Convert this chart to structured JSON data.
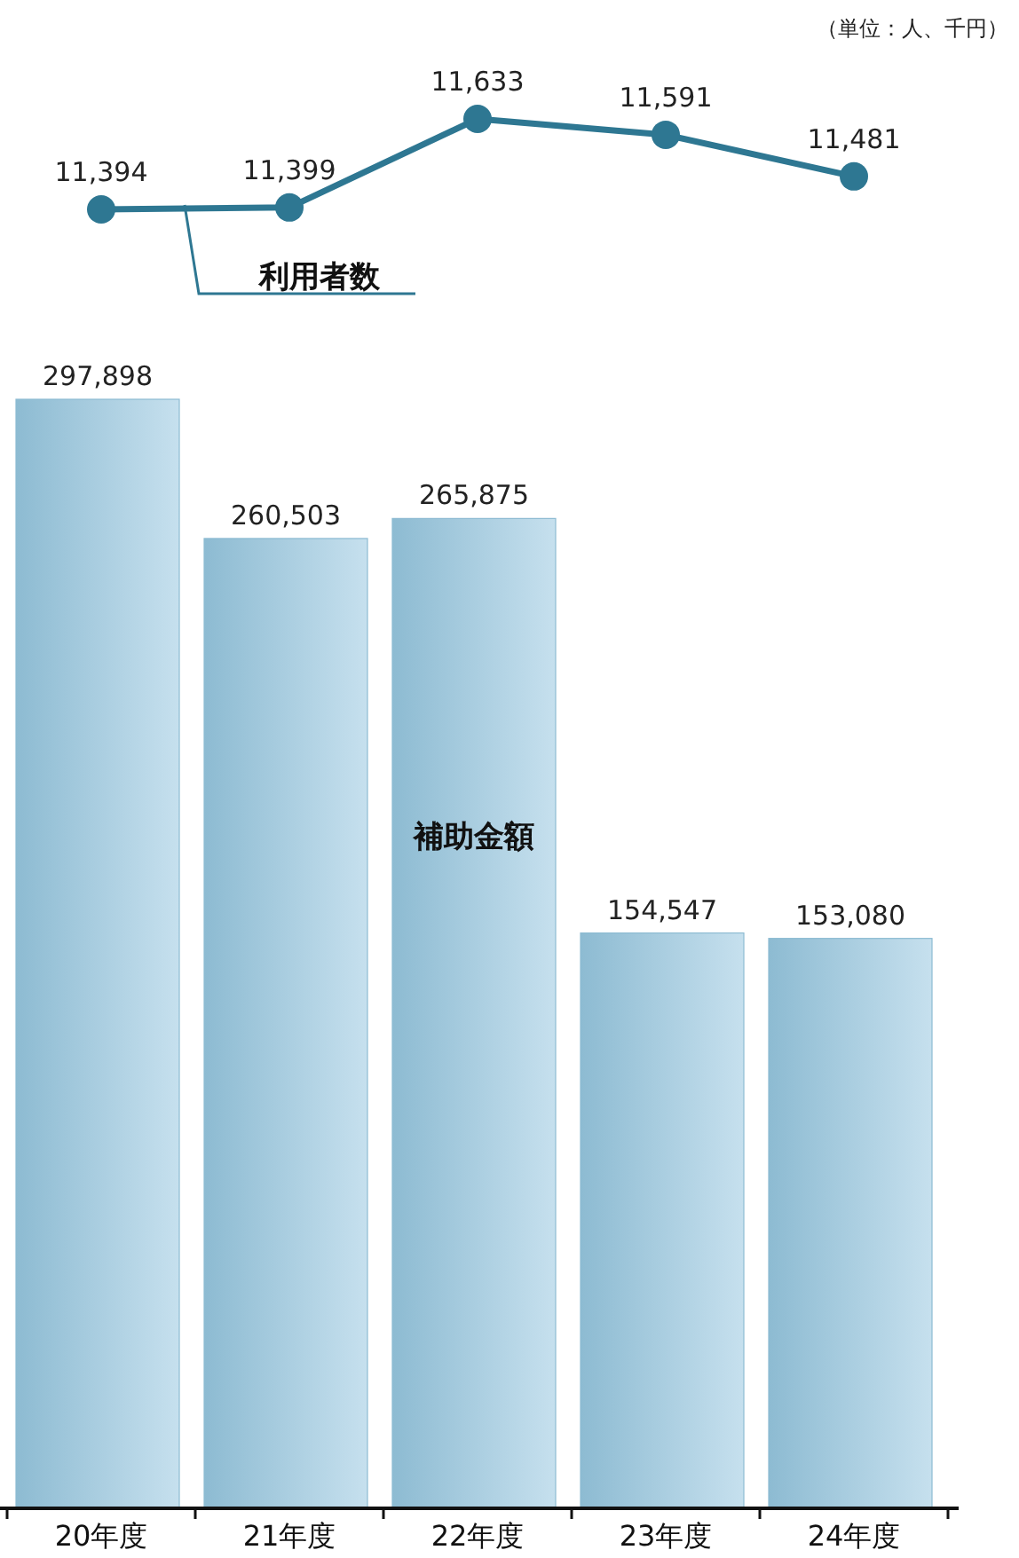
{
  "chart_data": [
    {
      "type": "line",
      "categories": [
        null,
        null,
        null,
        null,
        null
      ],
      "series": [
        {
          "name": "利用者数",
          "color": "#2e7792",
          "values": [
            11394,
            11399,
            11633,
            11591,
            11481
          ],
          "value_labels": [
            "11,394",
            "11,399",
            "11,633",
            "11,591",
            "11,481"
          ]
        }
      ],
      "marker": "circle",
      "annotations": [
        "（単位：人、千円）"
      ]
    },
    {
      "type": "bar",
      "categories": [
        "20年度",
        "21年度",
        "22年度",
        "23年度",
        "24年度"
      ],
      "series": [
        {
          "name": "補助金額",
          "color": "#8dbbd2",
          "values": [
            297898,
            260503,
            265875,
            154547,
            153080
          ],
          "value_labels": [
            "297,898",
            "260,503",
            "265,875",
            "154,547",
            "153,080"
          ]
        }
      ]
    }
  ]
}
